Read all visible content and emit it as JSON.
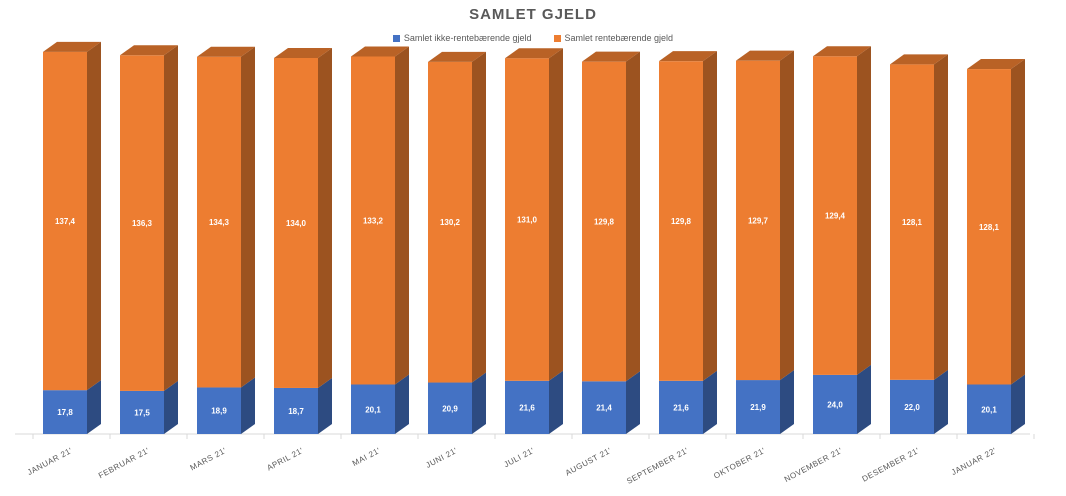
{
  "colors": {
    "non_interest": "#4472C4",
    "interest": "#ED7D31",
    "label_text": "#FFFFFF",
    "axis_text": "#595959"
  },
  "chart_data": {
    "type": "bar",
    "stacked": true,
    "three_d": true,
    "title": "SAMLET GJELD",
    "legend_position": "top",
    "categories": [
      "JANUAR 21'",
      "FEBRUAR 21'",
      "MARS 21'",
      "APRIL 21'",
      "MAI 21'",
      "JUNI 21'",
      "JULI 21'",
      "AUGUST 21'",
      "SEPTEMBER 21'",
      "OKTOBER 21'",
      "NOVEMBER 21'",
      "DESEMBER 21'",
      "JANUAR 22'"
    ],
    "series": [
      {
        "name": "Samlet ikke-rentebærende gjeld",
        "values": [
          17.8,
          17.5,
          18.9,
          18.7,
          20.1,
          20.9,
          21.6,
          21.4,
          21.6,
          21.9,
          24.0,
          22.0,
          20.1
        ],
        "labels": [
          "17,8",
          "17,5",
          "18,9",
          "18,7",
          "20,1",
          "20,9",
          "21,6",
          "21,4",
          "21,6",
          "21,9",
          "24,0",
          "22,0",
          "20,1"
        ]
      },
      {
        "name": "Samlet rentebærende gjeld",
        "values": [
          137.4,
          136.3,
          134.3,
          134.0,
          133.2,
          130.2,
          131.0,
          129.8,
          129.8,
          129.7,
          129.4,
          128.1,
          128.1
        ],
        "labels": [
          "137,4",
          "136,3",
          "134,3",
          "134,0",
          "133,2",
          "130,2",
          "131,0",
          "129,8",
          "129,8",
          "129,7",
          "129,4",
          "128,1",
          "128,1"
        ]
      }
    ],
    "ylim": [
      0,
      160
    ],
    "grid": false
  }
}
